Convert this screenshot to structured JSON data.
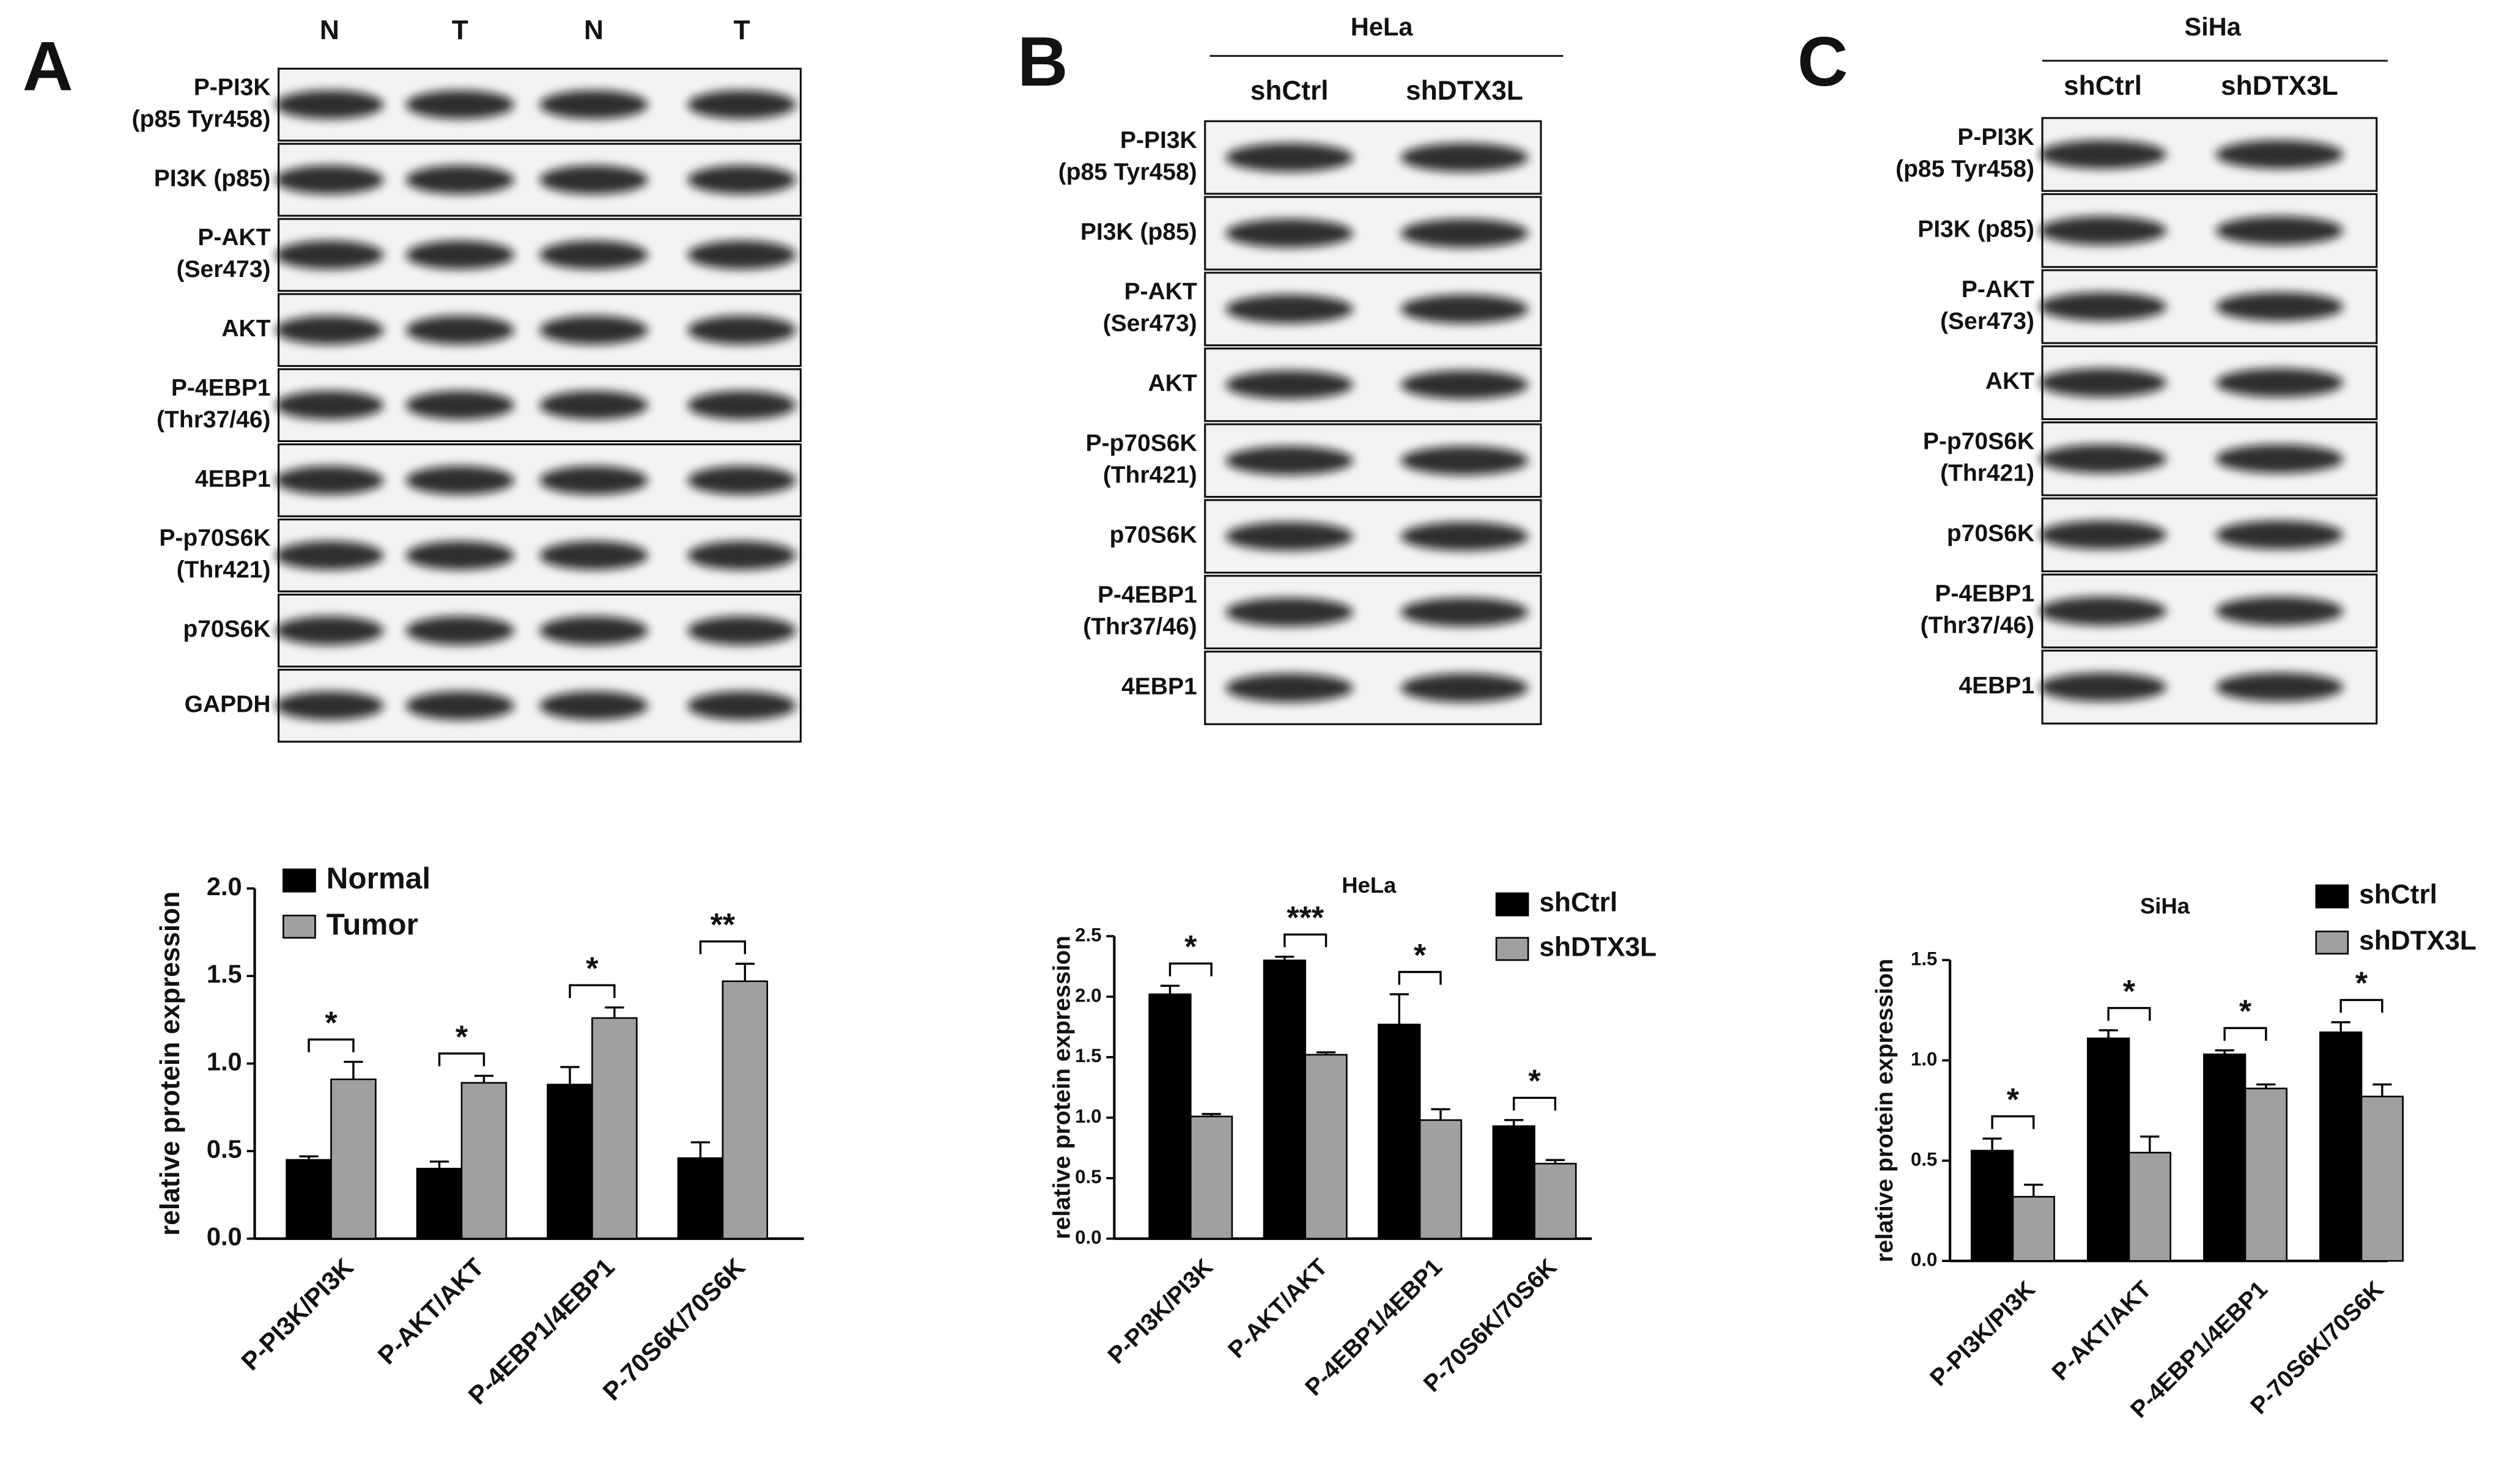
{
  "blots": [
    {
      "label": "A",
      "columns": [
        "N",
        "T",
        "N",
        "T"
      ],
      "rows": [
        [
          "P-PI3K",
          "(p85 Tyr458)"
        ],
        [
          "PI3K (p85)"
        ],
        [
          "P-AKT",
          "(Ser473)"
        ],
        [
          "AKT"
        ],
        [
          "P-4EBP1",
          "(Thr37/46)"
        ],
        [
          "4EBP1"
        ],
        [
          "P-p70S6K",
          "(Thr421)"
        ],
        [
          "p70S6K"
        ],
        [
          "GAPDH"
        ]
      ]
    },
    {
      "label": "B",
      "header": "HeLa",
      "columns": [
        "shCtrl",
        "shDTX3L"
      ],
      "rows": [
        [
          "P-PI3K",
          "(p85 Tyr458)"
        ],
        [
          "PI3K (p85)"
        ],
        [
          "P-AKT",
          "(Ser473)"
        ],
        [
          "AKT"
        ],
        [
          "P-p70S6K",
          "(Thr421)"
        ],
        [
          "p70S6K"
        ],
        [
          "P-4EBP1",
          "(Thr37/46)"
        ],
        [
          "4EBP1"
        ]
      ]
    },
    {
      "label": "C",
      "header": "SiHa",
      "columns": [
        "shCtrl",
        "shDTX3L"
      ],
      "rows": [
        [
          "P-PI3K",
          "(p85 Tyr458)"
        ],
        [
          "PI3K (p85)"
        ],
        [
          "P-AKT",
          "(Ser473)"
        ],
        [
          "AKT"
        ],
        [
          "P-p70S6K",
          "(Thr421)"
        ],
        [
          "p70S6K"
        ],
        [
          "P-4EBP1",
          "(Thr37/46)"
        ],
        [
          "4EBP1"
        ]
      ]
    }
  ],
  "chart_data": [
    {
      "type": "bar",
      "ylabel": "relative protein expression",
      "categories": [
        "P-PI3K/PI3K",
        "P-AKT/AKT",
        "P-4EBP1/4EBP1",
        "P-70S6K/70S6K"
      ],
      "series": [
        {
          "name": "Normal",
          "color": "#000000",
          "values": [
            0.45,
            0.4,
            0.88,
            0.46
          ],
          "errors": [
            0.02,
            0.04,
            0.1,
            0.09
          ]
        },
        {
          "name": "Tumor",
          "color": "#a0a0a0",
          "values": [
            0.91,
            0.89,
            1.26,
            1.47
          ],
          "errors": [
            0.1,
            0.04,
            0.06,
            0.1
          ]
        }
      ],
      "significance": [
        "*",
        "*",
        "*",
        "**"
      ],
      "ylim": [
        0,
        2.0
      ],
      "yticks": [
        {
          "value": 0,
          "label": "0.0"
        },
        0.5,
        {
          "value": 1,
          "label": "1.0"
        },
        1.5,
        {
          "value": 2,
          "label": "2.0"
        }
      ],
      "legend": "upper left"
    },
    {
      "type": "bar",
      "title": "HeLa",
      "ylabel": "relative protein expression",
      "categories": [
        "P-PI3K/PI3K",
        "P-AKT/AKT",
        "P-4EBP1/4EBP1",
        "P-70S6K/70S6K"
      ],
      "series": [
        {
          "name": "shCtrl",
          "color": "#000000",
          "values": [
            2.02,
            2.3,
            1.77,
            0.93
          ],
          "errors": [
            0.07,
            0.03,
            0.25,
            0.05
          ]
        },
        {
          "name": "shDTX3L",
          "color": "#a0a0a0",
          "values": [
            1.01,
            1.52,
            0.98,
            0.62
          ],
          "errors": [
            0.02,
            0.02,
            0.09,
            0.03
          ]
        }
      ],
      "significance": [
        "*",
        "***",
        "*",
        "*"
      ],
      "ylim": [
        0,
        2.5
      ],
      "yticks": [
        {
          "value": 0,
          "label": "0.0"
        },
        0.5,
        {
          "value": 1,
          "label": "1.0"
        },
        1.5,
        {
          "value": 2,
          "label": "2.0"
        },
        2.5
      ],
      "legend": "upper right"
    },
    {
      "type": "bar",
      "title": "SiHa",
      "ylabel": "relative protein expression",
      "categories": [
        "P-PI3K/PI3K",
        "P-AKT/AKT",
        "P-4EBP1/4EBP1",
        "P-70S6K/70S6K"
      ],
      "series": [
        {
          "name": "shCtrl",
          "color": "#000000",
          "values": [
            0.55,
            1.11,
            1.03,
            1.14
          ],
          "errors": [
            0.06,
            0.04,
            0.02,
            0.05
          ]
        },
        {
          "name": "shDTX3L",
          "color": "#a0a0a0",
          "values": [
            0.32,
            0.54,
            0.86,
            0.82
          ],
          "errors": [
            0.06,
            0.08,
            0.02,
            0.06
          ]
        }
      ],
      "significance": [
        "*",
        "*",
        "*",
        "*"
      ],
      "ylim": [
        0,
        1.5
      ],
      "yticks": [
        {
          "value": 0,
          "label": "0.0"
        },
        0.5,
        {
          "value": 1,
          "label": "1.0"
        },
        1.5
      ],
      "legend": "upper right"
    }
  ]
}
